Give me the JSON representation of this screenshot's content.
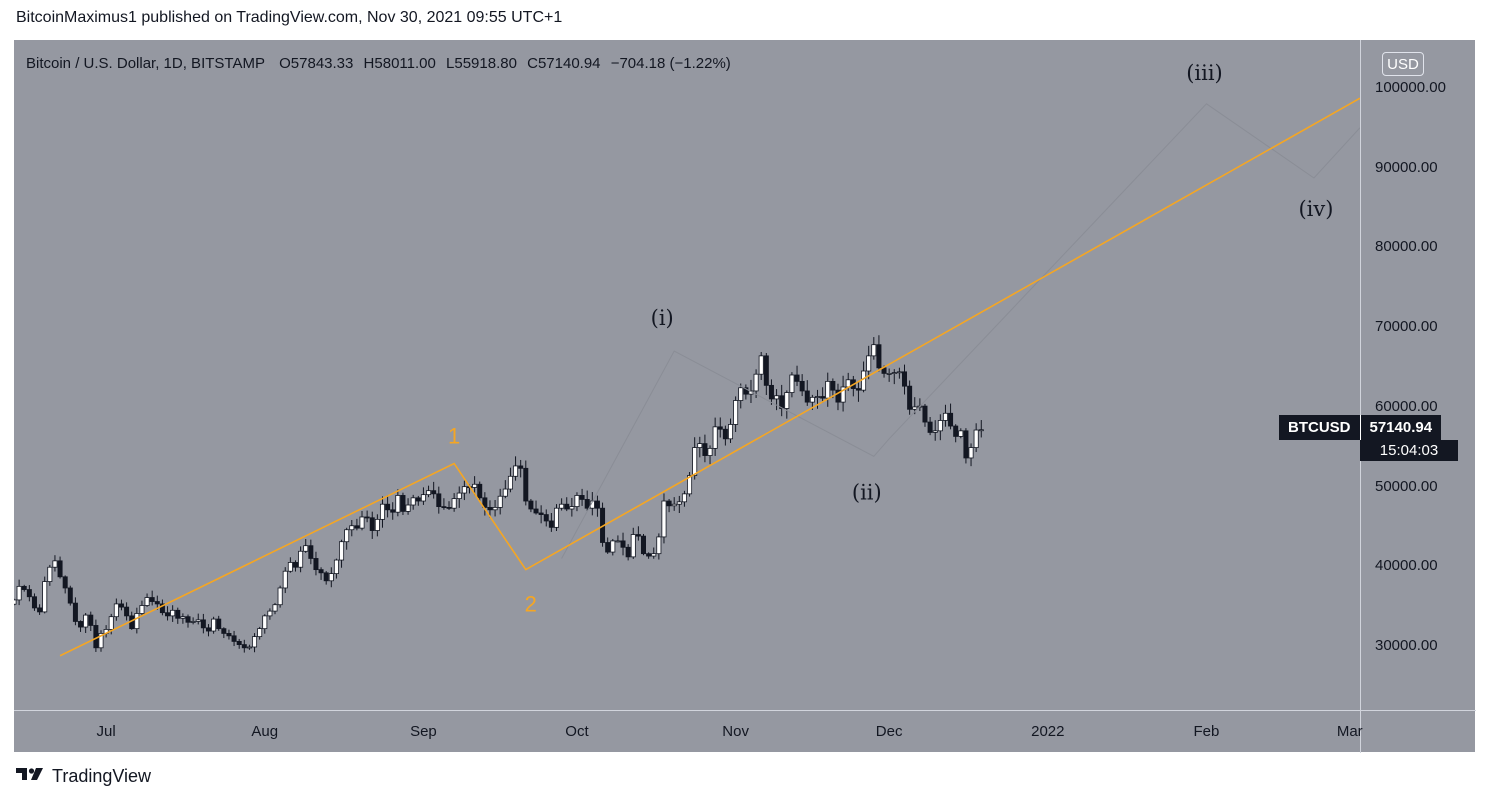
{
  "header": {
    "text": "BitcoinMaximus1 published on TradingView.com, Nov 30, 2021 09:55 UTC+1"
  },
  "legend": {
    "symbol": "Bitcoin / U.S. Dollar, 1D, BITSTAMP",
    "o_label": "O",
    "o_value": "57843.33",
    "h_label": "H",
    "h_value": "58011.00",
    "l_label": "L",
    "l_value": "55918.80",
    "c_label": "C",
    "c_value": "57140.94",
    "change": "−704.18 (−1.22%)"
  },
  "currency": "USD",
  "price_axis": [
    "100000.00",
    "90000.00",
    "80000.00",
    "70000.00",
    "60000.00",
    "50000.00",
    "40000.00",
    "30000.00"
  ],
  "time_axis": [
    "Jul",
    "Aug",
    "Sep",
    "Oct",
    "Nov",
    "Dec",
    "2022",
    "Feb",
    "Mar"
  ],
  "last_price": {
    "symbol": "BTCUSD",
    "price": "57140.94",
    "countdown": "15:04:03"
  },
  "wave_labels": {
    "orange_1": "1",
    "orange_2": "2",
    "i": "(i)",
    "ii": "(ii)",
    "iii": "(iii)",
    "iv": "(iv)"
  },
  "colors": {
    "background": "#9598a1",
    "candle": "#131722",
    "orange": "#f5a623",
    "projection": "#8a8d96"
  },
  "footer": {
    "brand": "TradingView",
    "logo_icon": "tradingview-logo-icon"
  },
  "chart_data": {
    "type": "candlestick",
    "symbol": "BTCUSD",
    "timeframe": "1D",
    "exchange": "BITSTAMP",
    "ylim": [
      22000,
      106000
    ],
    "x_range": [
      "2021-06-13",
      "2022-03-03"
    ],
    "closes": [
      35800,
      37500,
      37100,
      36200,
      34800,
      34300,
      38100,
      39900,
      40700,
      38700,
      37300,
      35400,
      33100,
      32400,
      33900,
      32600,
      29800,
      31600,
      32100,
      33700,
      35300,
      34900,
      33800,
      32200,
      34100,
      35100,
      36100,
      35600,
      35300,
      34200,
      33800,
      34500,
      33500,
      33700,
      33000,
      33100,
      33300,
      32300,
      31900,
      33400,
      32200,
      31600,
      31300,
      30600,
      30200,
      29800,
      29900,
      31200,
      32200,
      33800,
      34400,
      35200,
      37300,
      39400,
      40500,
      39900,
      41900,
      42600,
      41000,
      39600,
      39200,
      38200,
      39100,
      40800,
      43100,
      44600,
      45100,
      44800,
      46200,
      46100,
      44500,
      45900,
      47800,
      47100,
      46800,
      48900,
      46900,
      47700,
      48600,
      48200,
      49000,
      49500,
      49100,
      47500,
      47400,
      47300,
      48500,
      49200,
      50000,
      49900,
      50300,
      48600,
      47400,
      47100,
      47400,
      48800,
      49700,
      51300,
      52600,
      52300,
      48200,
      47200,
      46700,
      46500,
      45700,
      44900,
      47300,
      47800,
      47200,
      47500,
      48900,
      48400,
      47300,
      48200,
      47300,
      43000,
      41800,
      43200,
      43200,
      42400,
      41200,
      44000,
      43800,
      41600,
      41300,
      41600,
      43700,
      48200,
      47600,
      47800,
      48100,
      49100,
      51400,
      54900,
      55400,
      53900,
      54800,
      57500,
      57200,
      56000,
      57800,
      60800,
      62400,
      61600,
      62000,
      64100,
      66400,
      62700,
      61000,
      61400,
      59800,
      61800,
      64000,
      63200,
      62000,
      60600,
      61200,
      61300,
      61100,
      63200,
      62100,
      60600,
      62500,
      63400,
      62300,
      62100,
      64500,
      66400,
      67800,
      64900,
      64200,
      64200,
      64300,
      64400,
      62600,
      59700,
      60000,
      60100,
      58100,
      56800,
      57000,
      58300,
      59200,
      57600,
      56300,
      57000,
      53600,
      54900,
      57100,
      57140
    ],
    "fitted_curve_note": "candles approximate the displayed daily BTC/USD series",
    "orange_wave": [
      {
        "label": "",
        "date": "2021-06-22",
        "price": 28800
      },
      {
        "label": "1",
        "date": "2021-09-07",
        "price": 52900
      },
      {
        "label": "2",
        "date": "2021-09-21",
        "price": 39600
      },
      {
        "label": "",
        "date": "2022-03-03",
        "price": 98700
      }
    ],
    "projection_wave": [
      {
        "label": "",
        "date": "2021-09-28",
        "price": 41000
      },
      {
        "label": "(i)",
        "date": "2021-10-20",
        "price": 67000
      },
      {
        "label": "(ii)",
        "date": "2021-11-28",
        "price": 53800
      },
      {
        "label": "",
        "date": "2021-12-01",
        "price": 56000
      },
      {
        "label": "(iii)",
        "date": "2022-02-01",
        "price": 98000
      },
      {
        "label": "(iv)",
        "date": "2022-02-22",
        "price": 88700
      },
      {
        "label": "",
        "date": "2022-03-03",
        "price": 95000
      }
    ]
  }
}
